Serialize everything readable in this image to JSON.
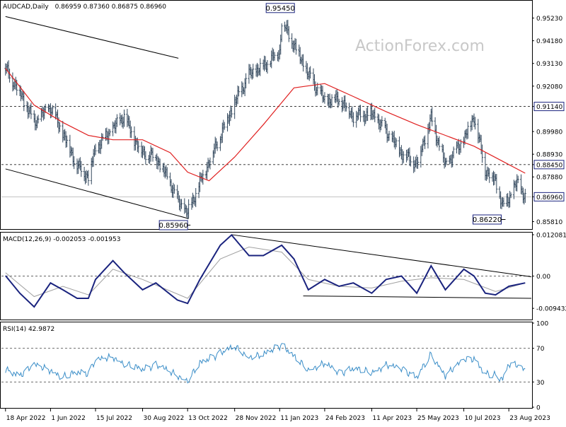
{
  "chart_data": [
    {
      "type": "ohlc",
      "name": "price",
      "symbol_label": "AUDCAD,Daily",
      "ohlc_label": "0.86959 0.87360 0.86875 0.86960",
      "watermark": "ActionForex.com",
      "ylim": [
        0.855,
        0.96
      ],
      "yticks": [
        "0.95230",
        "0.94180",
        "0.93130",
        "0.92080",
        "0.91140",
        "0.89980",
        "0.88930",
        "0.88450",
        "0.87880",
        "0.86960",
        "0.85810"
      ],
      "ytick_values": [
        0.9523,
        0.9418,
        0.9313,
        0.9208,
        0.9114,
        0.8998,
        0.8893,
        0.8845,
        0.8788,
        0.8696,
        0.8581
      ],
      "hlines": [
        {
          "value": 0.9114,
          "label": "0.91140"
        },
        {
          "value": 0.8845,
          "label": "0.88450"
        },
        {
          "value": 0.8696,
          "label": "0.86960"
        }
      ],
      "annotations": [
        {
          "text": "0.95450",
          "date": "2023-01-13",
          "value": 0.9545
        },
        {
          "text": "0.85960",
          "date": "2022-10-13",
          "value": 0.8596
        },
        {
          "text": "0.86220",
          "date": "2023-08-17",
          "value": 0.8622
        }
      ],
      "trendlines": [
        {
          "from": [
            "2022-04-18",
            0.953
          ],
          "to": [
            "2022-10-04",
            0.9337
          ]
        },
        {
          "from": [
            "2022-04-18",
            0.8825
          ],
          "to": [
            "2022-10-14",
            0.8595
          ]
        }
      ],
      "close_series": [
        {
          "date": "2022-04-18",
          "close": 0.929
        },
        {
          "date": "2022-05-02",
          "close": 0.918
        },
        {
          "date": "2022-05-16",
          "close": 0.904
        },
        {
          "date": "2022-06-01",
          "close": 0.911
        },
        {
          "date": "2022-06-13",
          "close": 0.899
        },
        {
          "date": "2022-06-27",
          "close": 0.884
        },
        {
          "date": "2022-07-08",
          "close": 0.879
        },
        {
          "date": "2022-07-15",
          "close": 0.892
        },
        {
          "date": "2022-08-01",
          "close": 0.901
        },
        {
          "date": "2022-08-12",
          "close": 0.907
        },
        {
          "date": "2022-08-22",
          "close": 0.896
        },
        {
          "date": "2022-08-30",
          "close": 0.89
        },
        {
          "date": "2022-09-12",
          "close": 0.888
        },
        {
          "date": "2022-09-26",
          "close": 0.876
        },
        {
          "date": "2022-10-03",
          "close": 0.868
        },
        {
          "date": "2022-10-13",
          "close": 0.862
        },
        {
          "date": "2022-10-25",
          "close": 0.876
        },
        {
          "date": "2022-11-03",
          "close": 0.886
        },
        {
          "date": "2022-11-14",
          "close": 0.898
        },
        {
          "date": "2022-11-28",
          "close": 0.913
        },
        {
          "date": "2022-12-12",
          "close": 0.926
        },
        {
          "date": "2022-12-26",
          "close": 0.93
        },
        {
          "date": "2023-01-11",
          "close": 0.937
        },
        {
          "date": "2023-01-13",
          "close": 0.951
        },
        {
          "date": "2023-01-25",
          "close": 0.94
        },
        {
          "date": "2023-02-08",
          "close": 0.926
        },
        {
          "date": "2023-02-24",
          "close": 0.914
        },
        {
          "date": "2023-03-10",
          "close": 0.915
        },
        {
          "date": "2023-03-24",
          "close": 0.907
        },
        {
          "date": "2023-04-11",
          "close": 0.908
        },
        {
          "date": "2023-04-25",
          "close": 0.9
        },
        {
          "date": "2023-05-10",
          "close": 0.89
        },
        {
          "date": "2023-05-25",
          "close": 0.885
        },
        {
          "date": "2023-06-08",
          "close": 0.906
        },
        {
          "date": "2023-06-22",
          "close": 0.884
        },
        {
          "date": "2023-07-10",
          "close": 0.896
        },
        {
          "date": "2023-07-20",
          "close": 0.907
        },
        {
          "date": "2023-07-31",
          "close": 0.882
        },
        {
          "date": "2023-08-10",
          "close": 0.877
        },
        {
          "date": "2023-08-17",
          "close": 0.865
        },
        {
          "date": "2023-08-23",
          "close": 0.869
        },
        {
          "date": "2023-08-31",
          "close": 0.876
        },
        {
          "date": "2023-09-08",
          "close": 0.8696
        }
      ],
      "ma_series": [
        {
          "date": "2022-04-18",
          "value": 0.929
        },
        {
          "date": "2022-05-16",
          "value": 0.912
        },
        {
          "date": "2022-06-13",
          "value": 0.904
        },
        {
          "date": "2022-07-08",
          "value": 0.898
        },
        {
          "date": "2022-08-01",
          "value": 0.896
        },
        {
          "date": "2022-08-30",
          "value": 0.896
        },
        {
          "date": "2022-09-26",
          "value": 0.89
        },
        {
          "date": "2022-10-13",
          "value": 0.881
        },
        {
          "date": "2022-11-03",
          "value": 0.877
        },
        {
          "date": "2022-11-28",
          "value": 0.888
        },
        {
          "date": "2022-12-26",
          "value": 0.903
        },
        {
          "date": "2023-01-25",
          "value": 0.92
        },
        {
          "date": "2023-02-24",
          "value": 0.922
        },
        {
          "date": "2023-03-24",
          "value": 0.916
        },
        {
          "date": "2023-04-25",
          "value": 0.909
        },
        {
          "date": "2023-05-25",
          "value": 0.903
        },
        {
          "date": "2023-06-22",
          "value": 0.898
        },
        {
          "date": "2023-07-20",
          "value": 0.893
        },
        {
          "date": "2023-08-17",
          "value": 0.886
        },
        {
          "date": "2023-09-08",
          "value": 0.8805
        }
      ]
    },
    {
      "type": "line",
      "name": "macd",
      "label": "MACD(12,26,9) -0.002053 -0.001953",
      "ylim": [
        -0.0125,
        0.0125
      ],
      "yticks": [
        "0.012081",
        "0.00",
        "-0.009432"
      ],
      "ytick_values": [
        0.012081,
        0.0,
        -0.009432
      ],
      "trendlines": [
        {
          "from": [
            "2022-11-25",
            0.0121
          ],
          "to": [
            "2023-09-14",
            -0.0002
          ]
        },
        {
          "from": [
            "2023-02-03",
            -0.0058
          ],
          "to": [
            "2023-09-14",
            -0.0065
          ]
        }
      ],
      "series": [
        {
          "name": "macd",
          "points": [
            {
              "date": "2022-04-18",
              "value": 0.0001
            },
            {
              "date": "2022-05-02",
              "value": -0.005
            },
            {
              "date": "2022-05-16",
              "value": -0.009
            },
            {
              "date": "2022-06-01",
              "value": -0.002
            },
            {
              "date": "2022-06-13",
              "value": -0.004
            },
            {
              "date": "2022-06-27",
              "value": -0.0065
            },
            {
              "date": "2022-07-08",
              "value": -0.0065
            },
            {
              "date": "2022-07-15",
              "value": -0.001
            },
            {
              "date": "2022-08-01",
              "value": 0.0045
            },
            {
              "date": "2022-08-12",
              "value": 0.001
            },
            {
              "date": "2022-08-30",
              "value": -0.004
            },
            {
              "date": "2022-09-12",
              "value": -0.002
            },
            {
              "date": "2022-10-03",
              "value": -0.007
            },
            {
              "date": "2022-10-13",
              "value": -0.008
            },
            {
              "date": "2022-10-25",
              "value": -0.001
            },
            {
              "date": "2022-11-14",
              "value": 0.009
            },
            {
              "date": "2022-11-25",
              "value": 0.012
            },
            {
              "date": "2022-12-12",
              "value": 0.006
            },
            {
              "date": "2022-12-26",
              "value": 0.006
            },
            {
              "date": "2023-01-13",
              "value": 0.009
            },
            {
              "date": "2023-01-25",
              "value": 0.005
            },
            {
              "date": "2023-02-08",
              "value": -0.004
            },
            {
              "date": "2023-02-24",
              "value": -0.001
            },
            {
              "date": "2023-03-10",
              "value": -0.003
            },
            {
              "date": "2023-03-24",
              "value": -0.002
            },
            {
              "date": "2023-04-11",
              "value": -0.005
            },
            {
              "date": "2023-04-25",
              "value": -0.001
            },
            {
              "date": "2023-05-10",
              "value": 0.0
            },
            {
              "date": "2023-05-25",
              "value": -0.005
            },
            {
              "date": "2023-06-08",
              "value": 0.003
            },
            {
              "date": "2023-06-22",
              "value": -0.004
            },
            {
              "date": "2023-07-10",
              "value": 0.002
            },
            {
              "date": "2023-07-20",
              "value": 0.0
            },
            {
              "date": "2023-07-31",
              "value": -0.005
            },
            {
              "date": "2023-08-10",
              "value": -0.0055
            },
            {
              "date": "2023-08-23",
              "value": -0.003
            },
            {
              "date": "2023-09-08",
              "value": -0.002
            }
          ]
        },
        {
          "name": "signal",
          "points": [
            {
              "date": "2022-04-18",
              "value": 0.001
            },
            {
              "date": "2022-05-16",
              "value": -0.006
            },
            {
              "date": "2022-06-13",
              "value": -0.003
            },
            {
              "date": "2022-07-08",
              "value": -0.0055
            },
            {
              "date": "2022-08-01",
              "value": 0.002
            },
            {
              "date": "2022-08-30",
              "value": -0.001
            },
            {
              "date": "2022-10-13",
              "value": -0.0065
            },
            {
              "date": "2022-11-14",
              "value": 0.005
            },
            {
              "date": "2022-12-12",
              "value": 0.0085
            },
            {
              "date": "2023-01-13",
              "value": 0.007
            },
            {
              "date": "2023-02-08",
              "value": -0.001
            },
            {
              "date": "2023-03-10",
              "value": -0.003
            },
            {
              "date": "2023-04-11",
              "value": -0.0035
            },
            {
              "date": "2023-05-10",
              "value": -0.0015
            },
            {
              "date": "2023-06-08",
              "value": -0.0005
            },
            {
              "date": "2023-07-10",
              "value": -0.001
            },
            {
              "date": "2023-08-10",
              "value": -0.0045
            },
            {
              "date": "2023-09-08",
              "value": -0.002
            }
          ]
        }
      ]
    },
    {
      "type": "line",
      "name": "rsi",
      "label": "RSI(14) 42.9872",
      "ylim": [
        0,
        100
      ],
      "yticks": [
        "100",
        "70",
        "30",
        "0"
      ],
      "ytick_values": [
        100,
        70,
        30,
        0
      ],
      "levels": [
        70,
        30
      ],
      "series": [
        {
          "name": "rsi",
          "points": [
            {
              "date": "2022-04-18",
              "value": 45
            },
            {
              "date": "2022-05-02",
              "value": 38
            },
            {
              "date": "2022-05-16",
              "value": 50
            },
            {
              "date": "2022-06-01",
              "value": 44
            },
            {
              "date": "2022-06-13",
              "value": 36
            },
            {
              "date": "2022-06-27",
              "value": 42
            },
            {
              "date": "2022-07-08",
              "value": 40
            },
            {
              "date": "2022-07-15",
              "value": 55
            },
            {
              "date": "2022-08-01",
              "value": 60
            },
            {
              "date": "2022-08-12",
              "value": 52
            },
            {
              "date": "2022-08-30",
              "value": 45
            },
            {
              "date": "2022-09-12",
              "value": 50
            },
            {
              "date": "2022-10-03",
              "value": 38
            },
            {
              "date": "2022-10-13",
              "value": 32
            },
            {
              "date": "2022-10-25",
              "value": 52
            },
            {
              "date": "2022-11-14",
              "value": 64
            },
            {
              "date": "2022-11-28",
              "value": 72
            },
            {
              "date": "2022-12-12",
              "value": 60
            },
            {
              "date": "2022-12-26",
              "value": 62
            },
            {
              "date": "2023-01-13",
              "value": 74
            },
            {
              "date": "2023-01-25",
              "value": 60
            },
            {
              "date": "2023-02-08",
              "value": 45
            },
            {
              "date": "2023-02-24",
              "value": 52
            },
            {
              "date": "2023-03-10",
              "value": 40
            },
            {
              "date": "2023-03-24",
              "value": 46
            },
            {
              "date": "2023-04-11",
              "value": 42
            },
            {
              "date": "2023-04-25",
              "value": 50
            },
            {
              "date": "2023-05-10",
              "value": 45
            },
            {
              "date": "2023-05-25",
              "value": 36
            },
            {
              "date": "2023-06-08",
              "value": 63
            },
            {
              "date": "2023-06-22",
              "value": 38
            },
            {
              "date": "2023-07-10",
              "value": 56
            },
            {
              "date": "2023-07-20",
              "value": 58
            },
            {
              "date": "2023-07-31",
              "value": 40
            },
            {
              "date": "2023-08-10",
              "value": 38
            },
            {
              "date": "2023-08-17",
              "value": 34
            },
            {
              "date": "2023-08-23",
              "value": 52
            },
            {
              "date": "2023-08-31",
              "value": 50
            },
            {
              "date": "2023-09-08",
              "value": 43
            }
          ]
        }
      ]
    }
  ],
  "x_axis": {
    "ticks": [
      "18 Apr 2022",
      "1 Jun 2022",
      "15 Jul 2022",
      "30 Aug 2022",
      "13 Oct 2022",
      "28 Nov 2022",
      "11 Jan 2023",
      "24 Feb 2023",
      "11 Apr 2023",
      "25 May 2023",
      "10 Jul 2023",
      "23 Aug 2023"
    ],
    "tick_dates": [
      "2022-04-18",
      "2022-06-01",
      "2022-07-15",
      "2022-08-30",
      "2022-10-13",
      "2022-11-28",
      "2023-01-11",
      "2023-02-24",
      "2023-04-11",
      "2023-05-25",
      "2023-07-10",
      "2023-08-23"
    ],
    "range": [
      "2022-04-14",
      "2023-09-14"
    ]
  },
  "colors": {
    "bars": "#34495e",
    "ma": "#e02020",
    "macd": "#1a237e",
    "signal": "#a0a0a0",
    "rsi": "#3b8ec8",
    "grid": "#555555"
  }
}
